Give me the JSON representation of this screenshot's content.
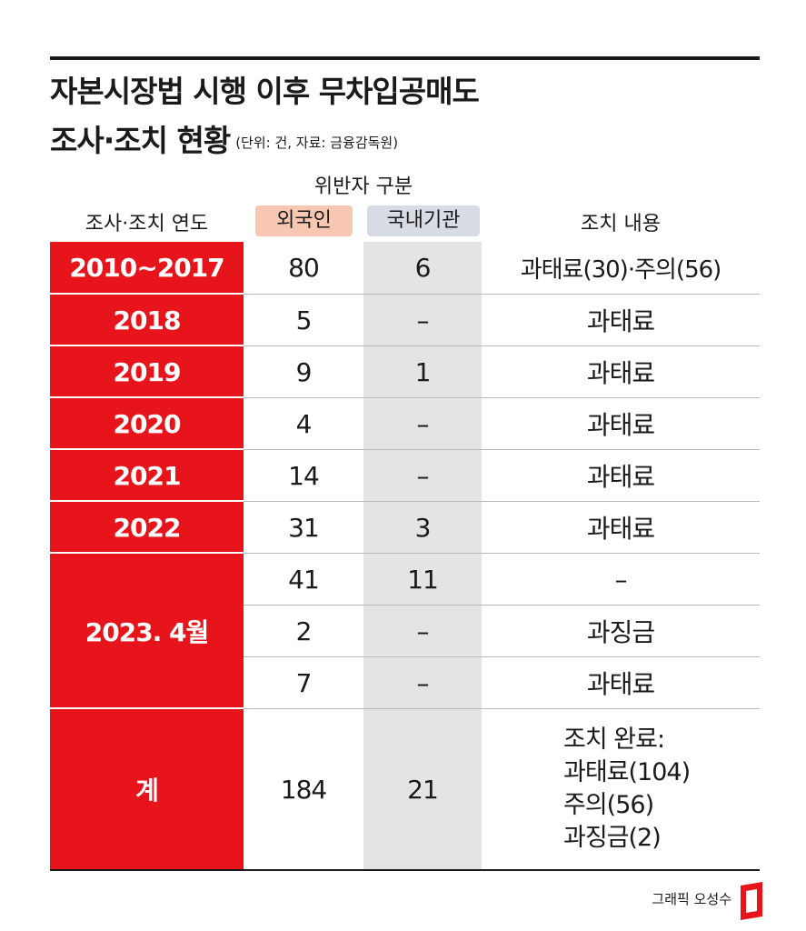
{
  "title": {
    "line1": "자본시장법 시행 이후 무차입공매도",
    "line2": "조사·조치 현황",
    "unit_note": "(단위: 건, 자료: 금융감독원)"
  },
  "headers": {
    "year": "조사·조치 연도",
    "violator_group": "위반자 구분",
    "foreign": "외국인",
    "domestic": "국내기관",
    "action": "조치 내용"
  },
  "rows": [
    {
      "year": "2010~2017",
      "foreign": "80",
      "domestic": "6",
      "action": "과태료(30)·주의(56)"
    },
    {
      "year": "2018",
      "foreign": "5",
      "domestic": "–",
      "action": "과태료"
    },
    {
      "year": "2019",
      "foreign": "9",
      "domestic": "1",
      "action": "과태료"
    },
    {
      "year": "2020",
      "foreign": "4",
      "domestic": "–",
      "action": "과태료"
    },
    {
      "year": "2021",
      "foreign": "14",
      "domestic": "–",
      "action": "과태료"
    },
    {
      "year": "2022",
      "foreign": "31",
      "domestic": "3",
      "action": "과태료"
    }
  ],
  "group2023": {
    "year": "2023. 4월",
    "rows": [
      {
        "foreign": "41",
        "domestic": "11",
        "action": "–"
      },
      {
        "foreign": "2",
        "domestic": "–",
        "action": "과징금"
      },
      {
        "foreign": "7",
        "domestic": "–",
        "action": "과태료"
      }
    ]
  },
  "total": {
    "label": "계",
    "foreign": "184",
    "domestic": "21",
    "action_lines": [
      "조치 완료:",
      "과태료(104)",
      "주의(56)",
      "과징금(2)"
    ]
  },
  "credit": "그래픽 오성수",
  "colors": {
    "accent_red": "#e8141b",
    "foreign_pill": "#f8c7b1",
    "domestic_pill": "#d8dce4",
    "domestic_column": "#e3e4e6"
  }
}
